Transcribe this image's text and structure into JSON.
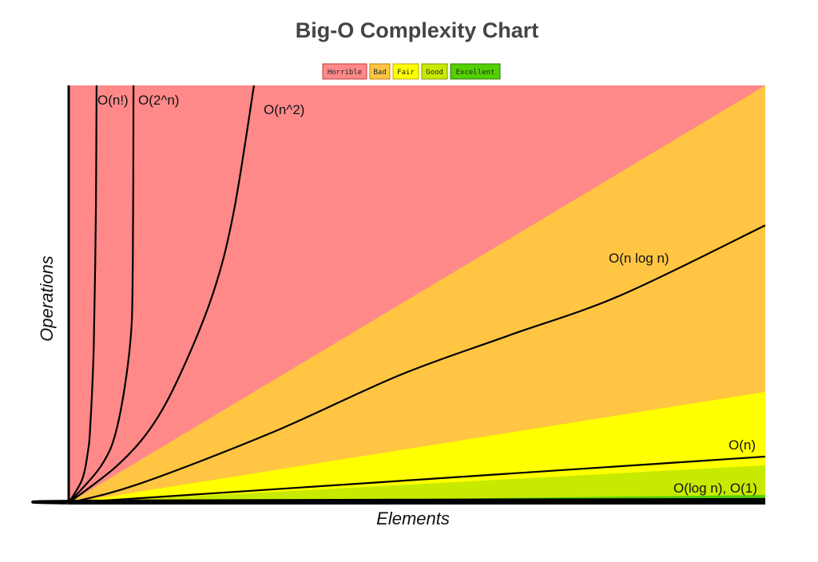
{
  "chart_data": {
    "type": "area",
    "title": "Big-O Complexity Chart",
    "xlabel": "Elements",
    "ylabel": "Operations",
    "xlim": [
      0,
      100
    ],
    "ylim": [
      0,
      100
    ],
    "grid": false,
    "legend_placement": "top-center",
    "legend": [
      {
        "label": "Horrible",
        "color": "#FF8989",
        "border": "#C0393B"
      },
      {
        "label": "Bad",
        "color": "#FFC543",
        "border": "#C07D00"
      },
      {
        "label": "Fair",
        "color": "#FFFF00",
        "border": "#B8A800"
      },
      {
        "label": "Good",
        "color": "#C8EA00",
        "border": "#7F9A00"
      },
      {
        "label": "Excellent",
        "color": "#53D000",
        "border": "#2E7D00"
      }
    ],
    "regions": [
      {
        "name": "Horrible",
        "upper_at_xmax": 100,
        "color": "#FF8989"
      },
      {
        "name": "Bad",
        "upper_at_xmax": 100,
        "color": "#FFC543"
      },
      {
        "name": "Fair",
        "upper_at_xmax": 26.6,
        "color": "#FFFF00"
      },
      {
        "name": "Good",
        "upper_at_xmax": 9.0,
        "color": "#C8EA00"
      },
      {
        "name": "Excellent",
        "upper_at_xmax": 1.9,
        "color": "#53D000"
      }
    ],
    "series": [
      {
        "name": "O(n!)",
        "points": [
          [
            0,
            0
          ],
          [
            1.95,
            5.7
          ],
          [
            2.75,
            12.2
          ],
          [
            3.1,
            18.5
          ],
          [
            3.6,
            37.7
          ],
          [
            3.9,
            70
          ],
          [
            4.0,
            100
          ]
        ]
      },
      {
        "name": "O(2^n)",
        "points": [
          [
            0,
            0
          ],
          [
            4.7,
            9.0
          ],
          [
            7.0,
            18.5
          ],
          [
            8.8,
            37.7
          ],
          [
            9.2,
            56.8
          ],
          [
            9.3,
            100
          ]
        ]
      },
      {
        "name": "O(n^2)",
        "points": [
          [
            0,
            0
          ],
          [
            7.0,
            9.0
          ],
          [
            12.0,
            18.5
          ],
          [
            16.2,
            31.5
          ],
          [
            20.8,
            50.6
          ],
          [
            23.7,
            69.8
          ],
          [
            26.6,
            100
          ]
        ]
      },
      {
        "name": "O(n log n)",
        "points": [
          [
            0,
            0
          ],
          [
            10,
            4.5
          ],
          [
            29.1,
            16.8
          ],
          [
            47.5,
            30.6
          ],
          [
            63,
            40
          ],
          [
            79.2,
            49.7
          ],
          [
            100,
            66.5
          ]
        ]
      },
      {
        "name": "O(n)",
        "points": [
          [
            0,
            0
          ],
          [
            100,
            11.1
          ]
        ]
      },
      {
        "name": "O(log n), O(1)",
        "points": [
          [
            0,
            0
          ],
          [
            3,
            0.4
          ],
          [
            100,
            0.8
          ]
        ]
      }
    ]
  }
}
